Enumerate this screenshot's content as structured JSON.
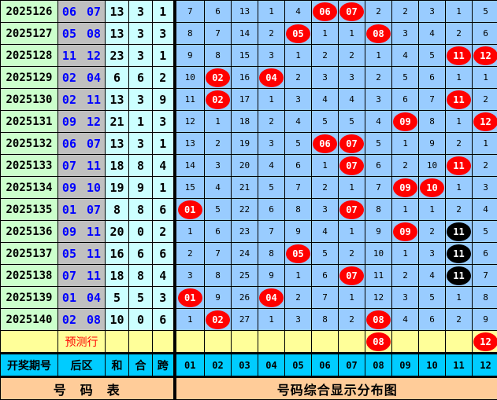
{
  "colors": {
    "period_bg": "#ccffcc",
    "back_bg": "#c0c0c0",
    "back_text": "#0000ff",
    "stat_bg": "#ccffff",
    "grid_bg": "#99ccff",
    "ball_red": "#ff0000",
    "ball_black": "#000000",
    "predict_bg": "#ffff99",
    "header_bg": "#00ccff",
    "footer_bg": "#ffcc99"
  },
  "rows": [
    {
      "period": "2025126",
      "back": "06 07",
      "sum": "13",
      "he": "3",
      "kua": "1",
      "cells": [
        "7",
        "6",
        "13",
        "1",
        "4",
        "06",
        "07",
        "2",
        "2",
        "3",
        "1",
        "5"
      ],
      "hits": [
        5,
        6
      ],
      "black": []
    },
    {
      "period": "2025127",
      "back": "05 08",
      "sum": "13",
      "he": "3",
      "kua": "3",
      "cells": [
        "8",
        "7",
        "14",
        "2",
        "05",
        "1",
        "1",
        "08",
        "3",
        "4",
        "2",
        "6"
      ],
      "hits": [
        4,
        7
      ],
      "black": []
    },
    {
      "period": "2025128",
      "back": "11 12",
      "sum": "23",
      "he": "3",
      "kua": "1",
      "cells": [
        "9",
        "8",
        "15",
        "3",
        "1",
        "2",
        "2",
        "1",
        "4",
        "5",
        "11",
        "12"
      ],
      "hits": [
        10,
        11
      ],
      "black": []
    },
    {
      "period": "2025129",
      "back": "02 04",
      "sum": "6",
      "he": "6",
      "kua": "2",
      "cells": [
        "10",
        "02",
        "16",
        "04",
        "2",
        "3",
        "3",
        "2",
        "5",
        "6",
        "1",
        "1"
      ],
      "hits": [
        1,
        3
      ],
      "black": []
    },
    {
      "period": "2025130",
      "back": "02 11",
      "sum": "13",
      "he": "3",
      "kua": "9",
      "cells": [
        "11",
        "02",
        "17",
        "1",
        "3",
        "4",
        "4",
        "3",
        "6",
        "7",
        "11",
        "2"
      ],
      "hits": [
        1,
        10
      ],
      "black": []
    },
    {
      "period": "2025131",
      "back": "09 12",
      "sum": "21",
      "he": "1",
      "kua": "3",
      "cells": [
        "12",
        "1",
        "18",
        "2",
        "4",
        "5",
        "5",
        "4",
        "09",
        "8",
        "1",
        "12"
      ],
      "hits": [
        8,
        11
      ],
      "black": []
    },
    {
      "period": "2025132",
      "back": "06 07",
      "sum": "13",
      "he": "3",
      "kua": "1",
      "cells": [
        "13",
        "2",
        "19",
        "3",
        "5",
        "06",
        "07",
        "5",
        "1",
        "9",
        "2",
        "1"
      ],
      "hits": [
        5,
        6
      ],
      "black": []
    },
    {
      "period": "2025133",
      "back": "07 11",
      "sum": "18",
      "he": "8",
      "kua": "4",
      "cells": [
        "14",
        "3",
        "20",
        "4",
        "6",
        "1",
        "07",
        "6",
        "2",
        "10",
        "11",
        "2"
      ],
      "hits": [
        6,
        10
      ],
      "black": []
    },
    {
      "period": "2025134",
      "back": "09 10",
      "sum": "19",
      "he": "9",
      "kua": "1",
      "cells": [
        "15",
        "4",
        "21",
        "5",
        "7",
        "2",
        "1",
        "7",
        "09",
        "10",
        "1",
        "3"
      ],
      "hits": [
        8,
        9
      ],
      "black": []
    },
    {
      "period": "2025135",
      "back": "01 07",
      "sum": "8",
      "he": "8",
      "kua": "6",
      "cells": [
        "01",
        "5",
        "22",
        "6",
        "8",
        "3",
        "07",
        "8",
        "1",
        "1",
        "2",
        "4"
      ],
      "hits": [
        0,
        6
      ],
      "black": []
    },
    {
      "period": "2025136",
      "back": "09 11",
      "sum": "20",
      "he": "0",
      "kua": "2",
      "cells": [
        "1",
        "6",
        "23",
        "7",
        "9",
        "4",
        "1",
        "9",
        "09",
        "2",
        "11",
        "5"
      ],
      "hits": [
        8
      ],
      "black": [
        10
      ]
    },
    {
      "period": "2025137",
      "back": "05 11",
      "sum": "16",
      "he": "6",
      "kua": "6",
      "cells": [
        "2",
        "7",
        "24",
        "8",
        "05",
        "5",
        "2",
        "10",
        "1",
        "3",
        "11",
        "6"
      ],
      "hits": [
        4
      ],
      "black": [
        10
      ]
    },
    {
      "period": "2025138",
      "back": "07 11",
      "sum": "18",
      "he": "8",
      "kua": "4",
      "cells": [
        "3",
        "8",
        "25",
        "9",
        "1",
        "6",
        "07",
        "11",
        "2",
        "4",
        "11",
        "7"
      ],
      "hits": [
        6
      ],
      "black": [
        10
      ]
    },
    {
      "period": "2025139",
      "back": "01 04",
      "sum": "5",
      "he": "5",
      "kua": "3",
      "cells": [
        "01",
        "9",
        "26",
        "04",
        "2",
        "7",
        "1",
        "12",
        "3",
        "5",
        "1",
        "8"
      ],
      "hits": [
        0,
        3
      ],
      "black": []
    },
    {
      "period": "2025140",
      "back": "02 08",
      "sum": "10",
      "he": "0",
      "kua": "6",
      "cells": [
        "1",
        "02",
        "27",
        "1",
        "3",
        "8",
        "2",
        "08",
        "4",
        "6",
        "2",
        "9"
      ],
      "hits": [
        1,
        7
      ],
      "black": []
    }
  ],
  "prediction": {
    "label": "预测行",
    "cells": [
      "",
      "",
      "",
      "",
      "",
      "",
      "",
      "08",
      "",
      "",
      "",
      "12"
    ],
    "hits": [
      7,
      11
    ]
  },
  "header": {
    "period": "开奖期号",
    "back": "后区",
    "sum": "和",
    "he": "合",
    "kua": "跨",
    "numbers": [
      "01",
      "02",
      "03",
      "04",
      "05",
      "06",
      "07",
      "08",
      "09",
      "10",
      "11",
      "12"
    ]
  },
  "footer": {
    "left": "号　码　表",
    "right": "号码综合显示分布图"
  }
}
